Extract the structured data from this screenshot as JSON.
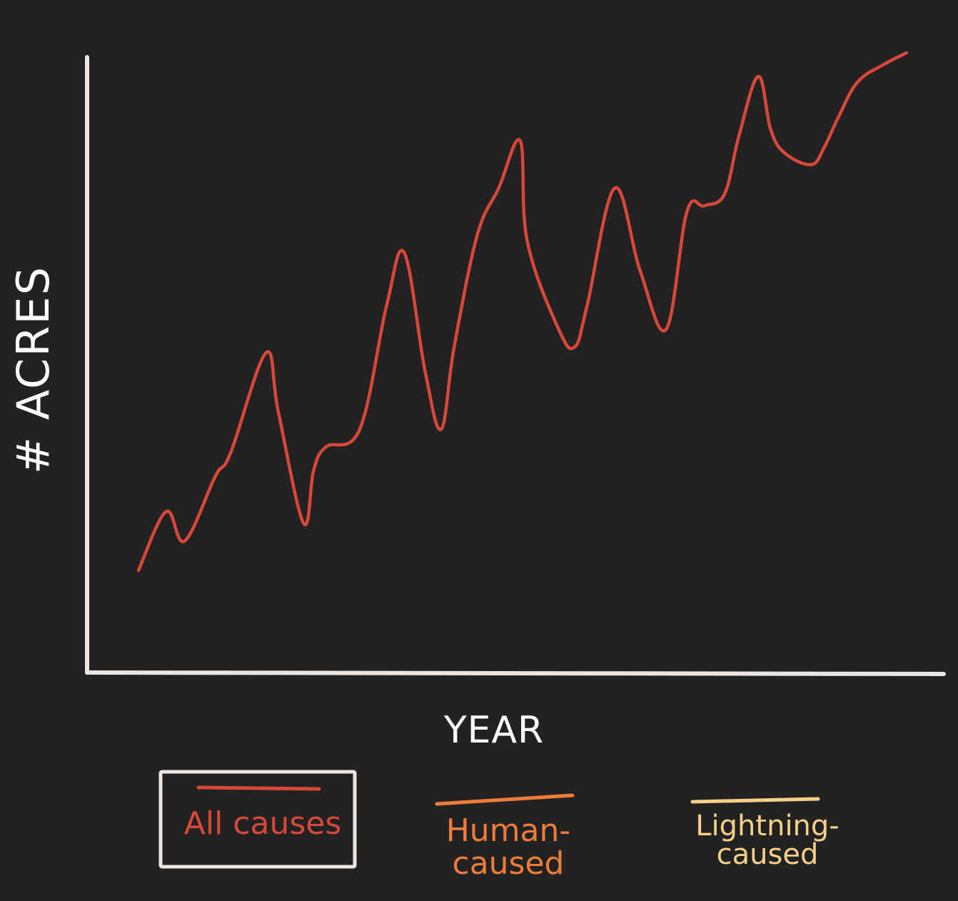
{
  "chart_data": {
    "type": "line",
    "title": "",
    "xlabel": "YEAR",
    "ylabel": "# ACRES",
    "x_ticks_shown": false,
    "y_ticks_shown": false,
    "grid": false,
    "legend_position": "bottom",
    "xlim": [
      0,
      100
    ],
    "ylim": [
      0,
      100
    ],
    "series": [
      {
        "name": "All causes",
        "color": "#d9473a",
        "selected": true,
        "x": [
          0,
          3.6,
          6.0,
          10.0,
          12.0,
          16.6,
          18.2,
          21.5,
          22.8,
          24.4,
          28.8,
          32.3,
          34.6,
          37.3,
          39.4,
          41.1,
          44.1,
          46.9,
          49.7,
          50.6,
          54.7,
          56.8,
          58.4,
          62.0,
          65.3,
          68.7,
          71.4,
          73.7,
          76.3,
          78.2,
          80.7,
          82.3,
          84.1,
          87.6,
          89.3,
          91.1,
          93.6,
          97.0,
          100.0
        ],
        "values": [
          16,
          26,
          21,
          32,
          36,
          53,
          43,
          24,
          33,
          37,
          40,
          61,
          70,
          50,
          40,
          54,
          73,
          81,
          89,
          72,
          57,
          54,
          61,
          81,
          67,
          57,
          77,
          78,
          80,
          90,
          100,
          91,
          87,
          85,
          88,
          93,
          99,
          102,
          104
        ]
      }
    ],
    "legend": [
      {
        "label": "All causes",
        "color": "#d9473a",
        "selected": true
      },
      {
        "label": "Human-\ncaused",
        "color": "#f07c3a",
        "selected": false
      },
      {
        "label": "Lightning-\ncaused",
        "color": "#f7d088",
        "selected": false
      }
    ],
    "colors": {
      "background": "#222222",
      "axes": "#ece6e2",
      "label": "#ffffff"
    }
  }
}
